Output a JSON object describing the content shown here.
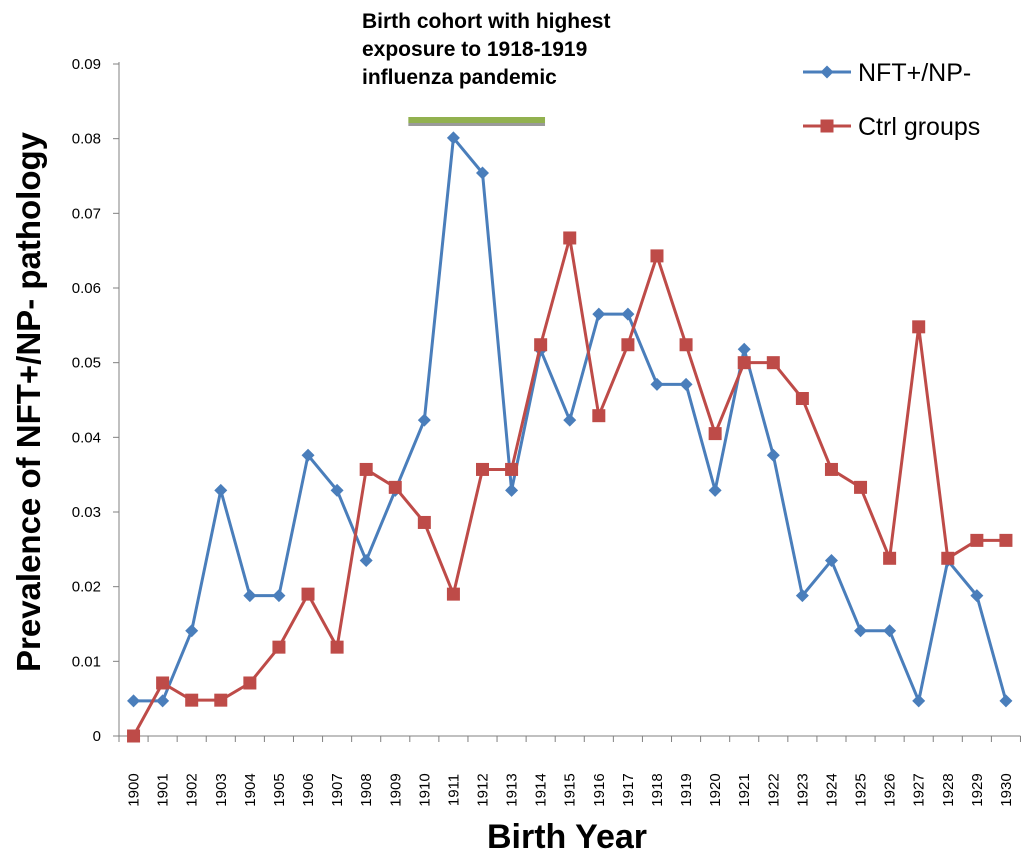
{
  "chart_data": {
    "type": "line",
    "title": "",
    "xlabel": "Birth Year",
    "ylabel": "Prevalence of NFT+/NP- pathology",
    "ylim": [
      0,
      0.09
    ],
    "yticks": [
      "0",
      "0.01",
      "0.02",
      "0.03",
      "0.04",
      "0.05",
      "0.06",
      "0.07",
      "0.08",
      "0.09"
    ],
    "x": [
      "1900",
      "1901",
      "1902",
      "1903",
      "1904",
      "1905",
      "1906",
      "1907",
      "1908",
      "1909",
      "1910",
      "1911",
      "1912",
      "1913",
      "1914",
      "1915",
      "1916",
      "1917",
      "1918",
      "1919",
      "1920",
      "1921",
      "1922",
      "1923",
      "1924",
      "1925",
      "1926",
      "1927",
      "1928",
      "1929",
      "1930"
    ],
    "legend_position": "top-right",
    "grid": false,
    "series": [
      {
        "name": "NFT+/NP-",
        "color": "#4a7ebb",
        "marker": "diamond",
        "values": [
          0.0047,
          0.0047,
          0.0141,
          0.0329,
          0.0188,
          0.0188,
          0.0376,
          0.0329,
          0.0235,
          0.0329,
          0.0423,
          0.0801,
          0.0754,
          0.0329,
          0.0517,
          0.0423,
          0.0565,
          0.0565,
          0.0471,
          0.0471,
          0.0329,
          0.0518,
          0.0376,
          0.0188,
          0.0235,
          0.0141,
          0.0141,
          0.0047,
          0.0235,
          0.0188,
          0.0047
        ]
      },
      {
        "name": "Ctrl groups",
        "color": "#be4b48",
        "marker": "square",
        "values": [
          0.0,
          0.0071,
          0.0048,
          0.0048,
          0.0071,
          0.0119,
          0.019,
          0.0119,
          0.0357,
          0.0333,
          0.0286,
          0.019,
          0.0357,
          0.0357,
          0.0524,
          0.0667,
          0.0429,
          0.0524,
          0.0643,
          0.0524,
          0.0405,
          0.05,
          0.05,
          0.0452,
          0.0357,
          0.0333,
          0.0238,
          0.0548,
          0.0238,
          0.0262,
          0.0262
        ]
      }
    ],
    "annotation": {
      "lines": [
        "Birth cohort with  highest",
        "exposure to 1918-1919",
        "influenza pandemic"
      ],
      "bar_start": "1910",
      "bar_end": "1914",
      "bar_color": "#92b14f"
    }
  }
}
